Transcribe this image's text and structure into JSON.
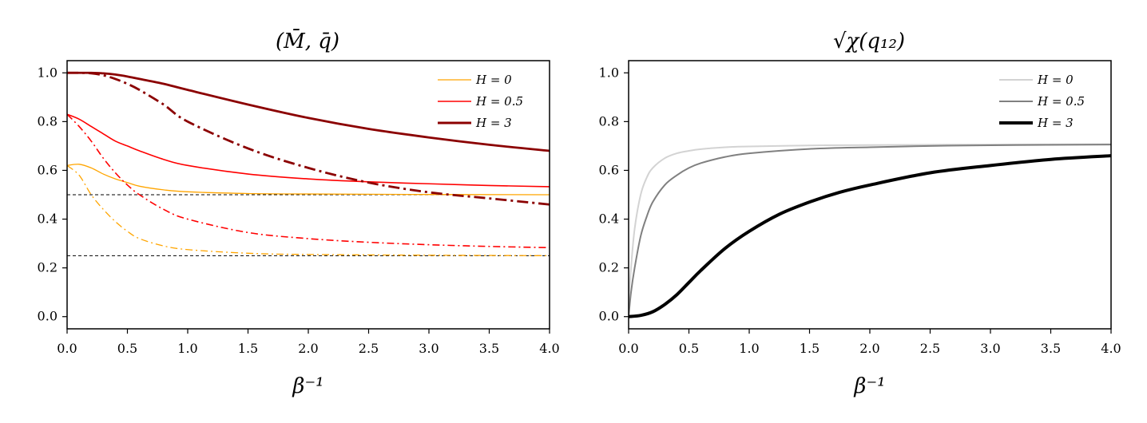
{
  "chart_data": [
    {
      "type": "line",
      "title": "(M̄, q̄)",
      "xlabel": "β⁻¹",
      "ylabel": "",
      "xlim": [
        0,
        4
      ],
      "ylim": [
        -0.05,
        1.05
      ],
      "xticks": [
        "0.0",
        "0.5",
        "1.0",
        "1.5",
        "2.0",
        "2.5",
        "3.0",
        "3.5",
        "4.0"
      ],
      "yticks": [
        "0.0",
        "0.2",
        "0.4",
        "0.6",
        "0.8",
        "1.0"
      ],
      "grid": false,
      "legend_position": "top-right",
      "legend": [
        {
          "label": "H = 0",
          "color": "#FFA500"
        },
        {
          "label": "H = 0.5",
          "color": "#FF0000"
        },
        {
          "label": "H = 3",
          "color": "#8B0000"
        }
      ],
      "series": [
        {
          "name": "M̄, H = 0",
          "style": "solid",
          "color": "#FFA500",
          "x": [
            0,
            0.1,
            0.2,
            0.3,
            0.4,
            0.5,
            0.6,
            0.8,
            1.0,
            1.5,
            2.0,
            3.0,
            4.0
          ],
          "y": [
            0.62,
            0.625,
            0.61,
            0.585,
            0.565,
            0.55,
            0.535,
            0.52,
            0.512,
            0.505,
            0.503,
            0.501,
            0.5
          ]
        },
        {
          "name": "q̄, H = 0",
          "style": "dashdot",
          "color": "#FFA500",
          "x": [
            0,
            0.1,
            0.2,
            0.3,
            0.4,
            0.5,
            0.6,
            0.8,
            1.0,
            1.5,
            2.0,
            3.0,
            4.0
          ],
          "y": [
            0.62,
            0.58,
            0.5,
            0.44,
            0.39,
            0.35,
            0.32,
            0.29,
            0.275,
            0.26,
            0.255,
            0.252,
            0.25
          ]
        },
        {
          "name": "M̄, H = 0.5",
          "style": "solid",
          "color": "#FF0000",
          "x": [
            0,
            0.1,
            0.2,
            0.3,
            0.4,
            0.5,
            0.6,
            0.8,
            1.0,
            1.5,
            2.0,
            2.5,
            3.0,
            3.5,
            4.0
          ],
          "y": [
            0.83,
            0.81,
            0.78,
            0.75,
            0.72,
            0.7,
            0.68,
            0.645,
            0.62,
            0.585,
            0.565,
            0.553,
            0.545,
            0.538,
            0.533
          ]
        },
        {
          "name": "q̄, H = 0.5",
          "style": "dashdot",
          "color": "#FF0000",
          "x": [
            0,
            0.1,
            0.2,
            0.3,
            0.4,
            0.5,
            0.6,
            0.8,
            1.0,
            1.5,
            2.0,
            2.5,
            3.0,
            3.5,
            4.0
          ],
          "y": [
            0.83,
            0.78,
            0.72,
            0.65,
            0.59,
            0.54,
            0.5,
            0.44,
            0.4,
            0.345,
            0.32,
            0.305,
            0.295,
            0.288,
            0.283
          ]
        },
        {
          "name": "M̄, H = 3",
          "style": "solid",
          "color": "#8B0000",
          "x": [
            0,
            0.1,
            0.2,
            0.3,
            0.4,
            0.5,
            0.6,
            0.8,
            1.0,
            1.5,
            2.0,
            2.5,
            3.0,
            3.5,
            4.0
          ],
          "y": [
            1.0,
            1.0,
            1.0,
            0.998,
            0.993,
            0.985,
            0.975,
            0.955,
            0.93,
            0.87,
            0.815,
            0.77,
            0.735,
            0.705,
            0.68
          ]
        },
        {
          "name": "q̄, H = 3",
          "style": "dashdot",
          "color": "#8B0000",
          "x": [
            0,
            0.1,
            0.2,
            0.3,
            0.4,
            0.5,
            0.6,
            0.8,
            1.0,
            1.5,
            2.0,
            2.5,
            3.0,
            3.5,
            4.0
          ],
          "y": [
            1.0,
            1.0,
            0.998,
            0.99,
            0.975,
            0.955,
            0.93,
            0.87,
            0.8,
            0.69,
            0.61,
            0.55,
            0.51,
            0.485,
            0.46
          ]
        }
      ],
      "reference_lines": [
        {
          "y": 0.5,
          "style": "dashed",
          "color": "#000000"
        },
        {
          "y": 0.25,
          "style": "dashed",
          "color": "#000000"
        }
      ]
    },
    {
      "type": "line",
      "title": "√χ(q₁₂)",
      "xlabel": "β⁻¹",
      "ylabel": "",
      "xlim": [
        0,
        4
      ],
      "ylim": [
        -0.05,
        1.05
      ],
      "xticks": [
        "0.0",
        "0.5",
        "1.0",
        "1.5",
        "2.0",
        "2.5",
        "3.0",
        "3.5",
        "4.0"
      ],
      "yticks": [
        "0.0",
        "0.2",
        "0.4",
        "0.6",
        "0.8",
        "1.0"
      ],
      "grid": false,
      "legend_position": "top-right",
      "legend": [
        {
          "label": "H = 0",
          "color": "#D3D3D3"
        },
        {
          "label": "H = 0.5",
          "color": "#808080"
        },
        {
          "label": "H = 3",
          "color": "#000000"
        }
      ],
      "series": [
        {
          "name": "H = 0",
          "style": "solid",
          "color": "#D3D3D3",
          "x": [
            0,
            0.02,
            0.05,
            0.1,
            0.15,
            0.2,
            0.3,
            0.4,
            0.5,
            0.6,
            0.8,
            1.0,
            1.5,
            2.0,
            3.0,
            4.0
          ],
          "y": [
            0.05,
            0.2,
            0.36,
            0.5,
            0.57,
            0.61,
            0.65,
            0.67,
            0.68,
            0.687,
            0.695,
            0.698,
            0.702,
            0.704,
            0.706,
            0.707
          ]
        },
        {
          "name": "H = 0.5",
          "style": "solid",
          "color": "#808080",
          "x": [
            0,
            0.02,
            0.05,
            0.1,
            0.15,
            0.2,
            0.3,
            0.4,
            0.5,
            0.6,
            0.8,
            1.0,
            1.5,
            2.0,
            2.5,
            3.0,
            4.0
          ],
          "y": [
            0.0,
            0.1,
            0.2,
            0.33,
            0.41,
            0.47,
            0.54,
            0.58,
            0.61,
            0.63,
            0.655,
            0.67,
            0.688,
            0.695,
            0.7,
            0.703,
            0.706
          ]
        },
        {
          "name": "H = 3",
          "style": "solid",
          "color": "#000000",
          "x": [
            0,
            0.1,
            0.2,
            0.3,
            0.4,
            0.5,
            0.6,
            0.8,
            1.0,
            1.25,
            1.5,
            1.75,
            2.0,
            2.5,
            3.0,
            3.5,
            4.0
          ],
          "y": [
            0.0,
            0.005,
            0.02,
            0.05,
            0.09,
            0.14,
            0.19,
            0.28,
            0.35,
            0.42,
            0.47,
            0.51,
            0.54,
            0.59,
            0.62,
            0.645,
            0.66
          ]
        }
      ]
    }
  ]
}
